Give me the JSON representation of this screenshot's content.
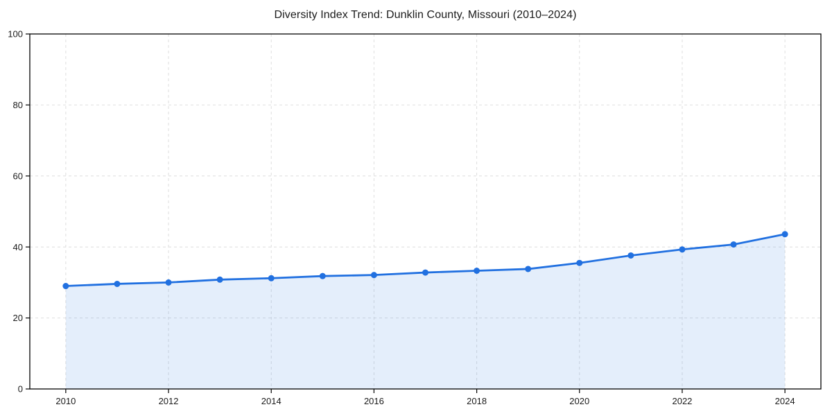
{
  "chart_data": {
    "type": "line",
    "title": "Diversity Index Trend: Dunklin County, Missouri (2010–2024)",
    "x": [
      2010,
      2011,
      2012,
      2013,
      2014,
      2015,
      2016,
      2017,
      2018,
      2019,
      2020,
      2021,
      2022,
      2023,
      2024
    ],
    "series": [
      {
        "name": "Diversity Index",
        "values": [
          29.0,
          29.6,
          30.0,
          30.8,
          31.2,
          31.8,
          32.1,
          32.8,
          33.3,
          33.8,
          35.5,
          37.6,
          39.3,
          40.7,
          43.6
        ]
      }
    ],
    "xlabel": "",
    "ylabel": "",
    "xlim": [
      2009.3,
      2024.7
    ],
    "ylim": [
      0,
      100
    ],
    "xticks": [
      2010,
      2012,
      2014,
      2016,
      2018,
      2020,
      2022,
      2024
    ],
    "xtick_labels": [
      "2010",
      "2012",
      "2014",
      "2016",
      "2018",
      "2020",
      "2022",
      "2024"
    ],
    "yticks": [
      0,
      20,
      40,
      60,
      80,
      100
    ],
    "ytick_labels": [
      "0",
      "20",
      "40",
      "60",
      "80",
      "100"
    ],
    "grid": "dashed",
    "legend": null,
    "area_fill": true,
    "colors": {
      "line": "#2170e0",
      "marker": "#2170e0",
      "fill": "#2170e0",
      "fill_opacity": 0.12,
      "grid": "#dedede",
      "spine": "#000000",
      "text": "#1a1a1a",
      "background": "#ffffff"
    }
  }
}
